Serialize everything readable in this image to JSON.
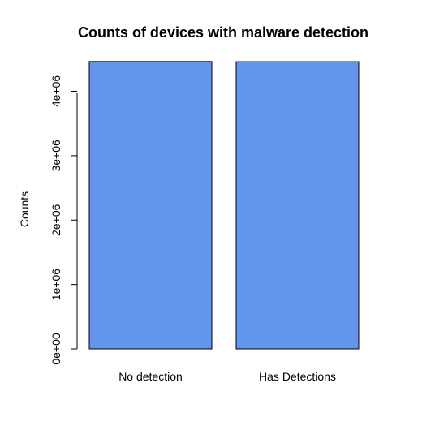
{
  "chart_data": {
    "type": "bar",
    "title": "Counts of devices with malware detection",
    "xlabel": "",
    "ylabel": "Counts",
    "categories": [
      "No detection",
      "Has Detections"
    ],
    "values": [
      4462000,
      4459000
    ],
    "ylim": [
      0,
      4460000
    ],
    "yticks": [
      0,
      1000000,
      2000000,
      3000000,
      4000000
    ],
    "ytick_labels": [
      "0e+00",
      "1e+06",
      "2e+06",
      "3e+06",
      "4e+06"
    ],
    "grid": false,
    "legend": "none",
    "colors": {
      "bar_fill": "#6495ED",
      "bar_stroke": "#000000"
    }
  }
}
